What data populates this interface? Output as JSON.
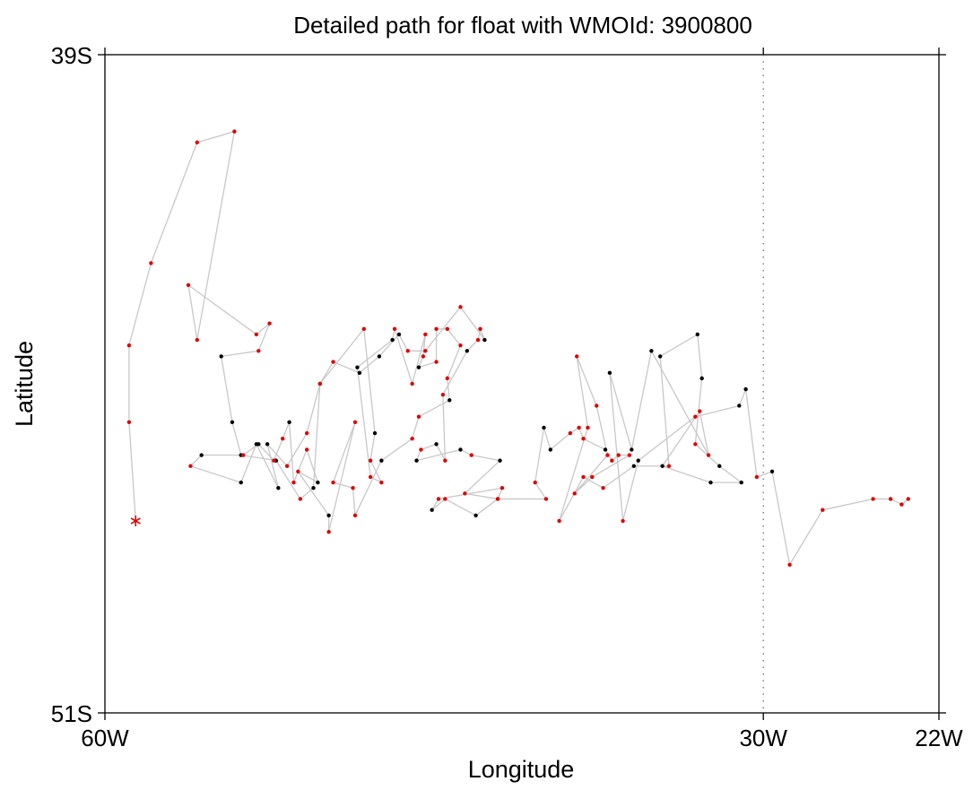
{
  "chart_data": {
    "type": "scatter",
    "title": "Detailed path for float with WMOId: 3900800",
    "xlabel": "Longitude",
    "ylabel": "Latitude",
    "xlim": [
      -60,
      -22
    ],
    "ylim": [
      -51,
      -39
    ],
    "x_ticks": [
      {
        "value": -60,
        "label": "60W"
      },
      {
        "value": -30,
        "label": "30W"
      },
      {
        "value": -22,
        "label": "22W"
      }
    ],
    "y_ticks": [
      {
        "value": -39,
        "label": "39S"
      },
      {
        "value": -51,
        "label": "51S"
      }
    ],
    "reference_line": {
      "x": -30,
      "style": "dotted"
    },
    "colors": {
      "track": "#c8c8c8",
      "point_primary": "#e00000",
      "point_secondary": "#000000",
      "start_marker": "#e00000"
    },
    "start_marker": {
      "x": -58.6,
      "y": -47.5,
      "symbol": "asterisk"
    },
    "track": [
      [
        -58.6,
        -47.5,
        "r"
      ],
      [
        -58.9,
        -45.7,
        "r"
      ],
      [
        -58.9,
        -44.3,
        "r"
      ],
      [
        -57.9,
        -42.8,
        "r"
      ],
      [
        -55.8,
        -40.6,
        "r"
      ],
      [
        -54.1,
        -40.4,
        "r"
      ],
      [
        -55.8,
        -44.2,
        "r"
      ],
      [
        -56.2,
        -43.2,
        "r"
      ],
      [
        -53.1,
        -44.1,
        "r"
      ],
      [
        -52.5,
        -43.9,
        "r"
      ],
      [
        -53.0,
        -44.4,
        "r"
      ],
      [
        -54.7,
        -44.5,
        "k"
      ],
      [
        -54.2,
        -45.7,
        "k"
      ],
      [
        -53.8,
        -46.3,
        "k"
      ],
      [
        -52.2,
        -46.4,
        "k"
      ],
      [
        -51.1,
        -47.1,
        "r"
      ],
      [
        -50.5,
        -46.9,
        "k"
      ],
      [
        -50.2,
        -45.0,
        "k"
      ],
      [
        -48.2,
        -44.0,
        "r"
      ],
      [
        -47.7,
        -45.9,
        "k"
      ],
      [
        -47.9,
        -46.4,
        "r"
      ],
      [
        -47.4,
        -46.8,
        "r"
      ],
      [
        -47.9,
        -46.7,
        "r"
      ],
      [
        -48.5,
        -44.7,
        "k"
      ],
      [
        -46.9,
        -44.2,
        "k"
      ],
      [
        -46.8,
        -44.0,
        "r"
      ],
      [
        -46.0,
        -45.0,
        "r"
      ],
      [
        -45.4,
        -44.1,
        "r"
      ],
      [
        -45.5,
        -44.5,
        "r"
      ],
      [
        -45.7,
        -44.7,
        "k"
      ],
      [
        -44.9,
        -44.6,
        "r"
      ],
      [
        -44.9,
        -44.0,
        "r"
      ],
      [
        -44.4,
        -44.0,
        "r"
      ],
      [
        -43.8,
        -44.3,
        "r"
      ],
      [
        -44.4,
        -44.9,
        "r"
      ],
      [
        -44.3,
        -45.3,
        "k"
      ],
      [
        -45.7,
        -45.6,
        "r"
      ],
      [
        -46.0,
        -46.0,
        "r"
      ],
      [
        -47.4,
        -46.4,
        "k"
      ],
      [
        -48.6,
        -47.4,
        "r"
      ],
      [
        -48.7,
        -46.9,
        "r"
      ],
      [
        -49.6,
        -46.8,
        "r"
      ],
      [
        -48.6,
        -45.7,
        "r"
      ],
      [
        -49.8,
        -47.7,
        "r"
      ],
      [
        -49.8,
        -47.4,
        "k"
      ],
      [
        -51.2,
        -46.6,
        "r"
      ],
      [
        -50.3,
        -46.8,
        "k"
      ],
      [
        -50.8,
        -46.2,
        "r"
      ],
      [
        -51.4,
        -46.8,
        "r"
      ],
      [
        -51.6,
        -45.7,
        "k"
      ],
      [
        -51.9,
        -46.0,
        "r"
      ],
      [
        -52.3,
        -46.4,
        "r"
      ],
      [
        -53.0,
        -46.1,
        "k"
      ],
      [
        -53.7,
        -46.3,
        "r"
      ],
      [
        -55.6,
        -46.3,
        "k"
      ],
      [
        -56.1,
        -46.5,
        "r"
      ],
      [
        -53.8,
        -46.8,
        "k"
      ],
      [
        -53.1,
        -46.1,
        "k"
      ],
      [
        -52.1,
        -46.9,
        "k"
      ],
      [
        -52.6,
        -46.1,
        "k"
      ],
      [
        -51.7,
        -46.5,
        "r"
      ],
      [
        -50.8,
        -45.9,
        "r"
      ],
      [
        -50.2,
        -45.0,
        "r"
      ],
      [
        -49.6,
        -44.6,
        "r"
      ],
      [
        -48.4,
        -44.8,
        "k"
      ],
      [
        -47.5,
        -44.5,
        "k"
      ],
      [
        -46.6,
        -44.1,
        "k"
      ],
      [
        -46.2,
        -44.4,
        "r"
      ],
      [
        -45.4,
        -44.4,
        "r"
      ],
      [
        -43.8,
        -43.6,
        "r"
      ],
      [
        -42.7,
        -44.2,
        "k"
      ],
      [
        -42.9,
        -44.0,
        "r"
      ],
      [
        -43.0,
        -44.2,
        "r"
      ],
      [
        -43.5,
        -44.4,
        "k"
      ],
      [
        -44.6,
        -45.2,
        "r"
      ],
      [
        -44.5,
        -46.4,
        "r"
      ],
      [
        -44.9,
        -46.1,
        "k"
      ],
      [
        -45.6,
        -46.2,
        "r"
      ],
      [
        -45.8,
        -46.4,
        "k"
      ],
      [
        -43.8,
        -46.2,
        "k"
      ],
      [
        -43.3,
        -46.3,
        "r"
      ],
      [
        -42.0,
        -46.4,
        "k"
      ],
      [
        -43.6,
        -47.0,
        "r"
      ],
      [
        -42.1,
        -47.1,
        "r"
      ],
      [
        -41.9,
        -46.9,
        "r"
      ],
      [
        -44.8,
        -47.1,
        "r"
      ],
      [
        -45.1,
        -47.3,
        "k"
      ],
      [
        -44.5,
        -47.1,
        "r"
      ],
      [
        -43.1,
        -47.4,
        "k"
      ],
      [
        -42.1,
        -47.1,
        "r"
      ],
      [
        -39.9,
        -47.1,
        "r"
      ],
      [
        -40.4,
        -46.8,
        "r"
      ],
      [
        -40.0,
        -45.8,
        "k"
      ],
      [
        -39.7,
        -46.2,
        "k"
      ],
      [
        -38.8,
        -45.9,
        "r"
      ],
      [
        -38.4,
        -45.8,
        "r"
      ],
      [
        -38.2,
        -46.0,
        "r"
      ],
      [
        -37.2,
        -46.2,
        "k"
      ],
      [
        -36.9,
        -46.4,
        "r"
      ],
      [
        -36.6,
        -46.3,
        "r"
      ],
      [
        -36.1,
        -46.3,
        "r"
      ],
      [
        -37.8,
        -46.7,
        "r"
      ],
      [
        -38.6,
        -47.0,
        "r"
      ],
      [
        -37.1,
        -46.3,
        "r"
      ],
      [
        -37.6,
        -45.4,
        "r"
      ],
      [
        -38.5,
        -44.5,
        "r"
      ],
      [
        -38.0,
        -45.8,
        "r"
      ],
      [
        -39.3,
        -47.5,
        "r"
      ],
      [
        -38.2,
        -46.7,
        "r"
      ],
      [
        -37.3,
        -46.9,
        "r"
      ],
      [
        -35.9,
        -46.5,
        "k"
      ],
      [
        -34.3,
        -46.5,
        "r"
      ],
      [
        -34.7,
        -44.5,
        "k"
      ],
      [
        -33.0,
        -44.1,
        "k"
      ],
      [
        -32.8,
        -44.9,
        "k"
      ],
      [
        -33.1,
        -46.1,
        "r"
      ],
      [
        -32.0,
        -46.5,
        "k"
      ],
      [
        -31.0,
        -46.8,
        "k"
      ],
      [
        -32.4,
        -46.8,
        "k"
      ],
      [
        -34.6,
        -46.5,
        "k"
      ],
      [
        -32.9,
        -45.5,
        "r"
      ],
      [
        -32.5,
        -46.3,
        "r"
      ],
      [
        -35.1,
        -44.4,
        "k"
      ],
      [
        -36.0,
        -46.2,
        "k"
      ],
      [
        -37.0,
        -44.8,
        "k"
      ],
      [
        -36.4,
        -47.5,
        "r"
      ],
      [
        -35.7,
        -46.4,
        "k"
      ],
      [
        -33.1,
        -45.6,
        "r"
      ],
      [
        -31.1,
        -45.4,
        "k"
      ],
      [
        -30.8,
        -45.1,
        "k"
      ],
      [
        -30.3,
        -46.7,
        "r"
      ],
      [
        -29.6,
        -46.6,
        "k"
      ],
      [
        -28.8,
        -48.3,
        "r"
      ],
      [
        -27.3,
        -47.3,
        "r"
      ],
      [
        -25.0,
        -47.1,
        "r"
      ],
      [
        -24.2,
        -47.1,
        "r"
      ],
      [
        -23.7,
        -47.2,
        "r"
      ],
      [
        -23.4,
        -47.1,
        "r"
      ]
    ],
    "note_colors": {
      "r": "point_primary",
      "k": "point_secondary"
    }
  },
  "icons": {
    "start": "asterisk-start-marker-icon"
  }
}
